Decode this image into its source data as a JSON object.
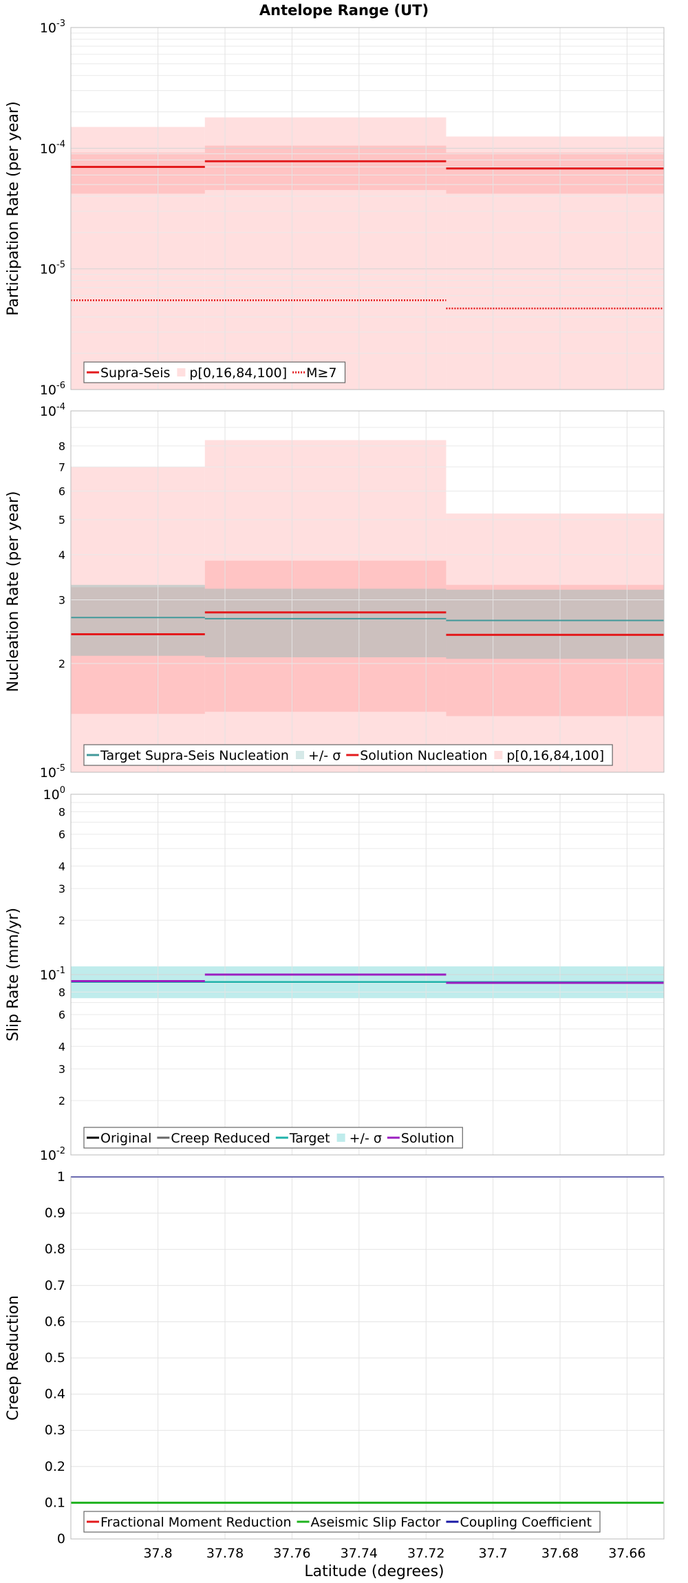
{
  "figure": {
    "title": "Antelope Range (UT)",
    "xlabel": "Latitude (degrees)"
  },
  "chart_data": [
    {
      "type": "line",
      "ylabel": "Participation Rate (per year)",
      "yscale": "log",
      "ylim": [
        1e-06,
        0.001
      ],
      "xlim": [
        37.826,
        37.649
      ],
      "x_reversed": true,
      "grid": true,
      "legend_position": "bottom-left",
      "y_ticks": [
        {
          "v": 1e-06,
          "base": "10",
          "exp": "-6"
        },
        {
          "v": 1e-05,
          "base": "10",
          "exp": "-5"
        },
        {
          "v": 0.0001,
          "base": "10",
          "exp": "-4"
        },
        {
          "v": 0.001,
          "base": "10",
          "exp": "-3"
        }
      ],
      "bands": [
        {
          "name": "p[0,16,84,100]",
          "color": "#ffdfdf",
          "segments": [
            {
              "x0": 37.826,
              "x1": 37.786,
              "low": 1e-06,
              "high": 0.00015
            },
            {
              "x0": 37.786,
              "x1": 37.714,
              "low": 1e-06,
              "high": 0.00018
            },
            {
              "x0": 37.714,
              "x1": 37.649,
              "low": 1e-06,
              "high": 0.000125
            }
          ]
        },
        {
          "name": "p16-84",
          "color": "#ffc4c4",
          "segments": [
            {
              "x0": 37.826,
              "x1": 37.786,
              "low": 4.2e-05,
              "high": 9.2e-05
            },
            {
              "x0": 37.786,
              "x1": 37.714,
              "low": 4.5e-05,
              "high": 0.000105
            },
            {
              "x0": 37.714,
              "x1": 37.649,
              "low": 4.2e-05,
              "high": 9.2e-05
            }
          ]
        }
      ],
      "series": [
        {
          "name": "Supra-Seis",
          "color": "#e31a1c",
          "style": "solid",
          "width": 3,
          "segments": [
            {
              "x0": 37.826,
              "x1": 37.786,
              "y": 7e-05
            },
            {
              "x0": 37.786,
              "x1": 37.714,
              "y": 7.8e-05
            },
            {
              "x0": 37.714,
              "x1": 37.649,
              "y": 6.8e-05
            }
          ]
        },
        {
          "name": "M≥7",
          "color": "#e31a1c",
          "style": "dotted",
          "width": 2.5,
          "segments": [
            {
              "x0": 37.826,
              "x1": 37.714,
              "y": 5.5e-06
            },
            {
              "x0": 37.714,
              "x1": 37.649,
              "y": 4.7e-06
            }
          ]
        }
      ],
      "legend": [
        {
          "label": "Supra-Seis",
          "kind": "line",
          "color": "#e31a1c",
          "style": "solid"
        },
        {
          "label": "p[0,16,84,100]",
          "kind": "box",
          "color": "#ffdfdf"
        },
        {
          "label": "M≥7",
          "kind": "line",
          "color": "#e31a1c",
          "style": "dotted"
        }
      ]
    },
    {
      "type": "line",
      "ylabel": "Nucleation Rate (per year)",
      "yscale": "log",
      "ylim": [
        1e-05,
        0.0001
      ],
      "xlim": [
        37.826,
        37.649
      ],
      "x_reversed": true,
      "grid": true,
      "legend_position": "bottom-left",
      "y_ticks": [
        {
          "v": 1e-05,
          "base": "10",
          "exp": "-5"
        },
        {
          "v": 2e-05,
          "text": "2"
        },
        {
          "v": 3e-05,
          "text": "3"
        },
        {
          "v": 4e-05,
          "text": "4"
        },
        {
          "v": 5e-05,
          "text": "5"
        },
        {
          "v": 6e-05,
          "text": "6"
        },
        {
          "v": 7e-05,
          "text": "7"
        },
        {
          "v": 8e-05,
          "text": "8"
        },
        {
          "v": 0.0001,
          "base": "10",
          "exp": "-4"
        }
      ],
      "bands": [
        {
          "name": "p[0,16,84,100]",
          "color": "#ffdfdf",
          "segments": [
            {
              "x0": 37.826,
              "x1": 37.786,
              "low": 1e-05,
              "high": 7e-05
            },
            {
              "x0": 37.786,
              "x1": 37.714,
              "low": 1e-05,
              "high": 8.3e-05
            },
            {
              "x0": 37.714,
              "x1": 37.649,
              "low": 1e-05,
              "high": 5.2e-05
            }
          ]
        },
        {
          "name": "p16-84",
          "color": "#ffc4c4",
          "segments": [
            {
              "x0": 37.826,
              "x1": 37.786,
              "low": 1.45e-05,
              "high": 3.25e-05
            },
            {
              "x0": 37.786,
              "x1": 37.714,
              "low": 1.47e-05,
              "high": 3.85e-05
            },
            {
              "x0": 37.714,
              "x1": 37.649,
              "low": 1.43e-05,
              "high": 3.3e-05
            }
          ]
        },
        {
          "name": "+/- σ",
          "color": "#8fbdb9",
          "opacity": 0.45,
          "segments": [
            {
              "x0": 37.826,
              "x1": 37.786,
              "low": 2.1e-05,
              "high": 3.3e-05
            },
            {
              "x0": 37.786,
              "x1": 37.714,
              "low": 2.08e-05,
              "high": 3.22e-05
            },
            {
              "x0": 37.714,
              "x1": 37.649,
              "low": 2.06e-05,
              "high": 3.2e-05
            }
          ]
        }
      ],
      "series": [
        {
          "name": "Target Supra-Seis Nucleation",
          "color": "#41999a",
          "style": "solid",
          "width": 2,
          "segments": [
            {
              "x0": 37.826,
              "x1": 37.786,
              "y": 2.68e-05
            },
            {
              "x0": 37.786,
              "x1": 37.714,
              "y": 2.66e-05
            },
            {
              "x0": 37.714,
              "x1": 37.649,
              "y": 2.63e-05
            }
          ]
        },
        {
          "name": "Solution Nucleation",
          "color": "#e31a1c",
          "style": "solid",
          "width": 3,
          "segments": [
            {
              "x0": 37.826,
              "x1": 37.786,
              "y": 2.41e-05
            },
            {
              "x0": 37.786,
              "x1": 37.714,
              "y": 2.77e-05
            },
            {
              "x0": 37.714,
              "x1": 37.649,
              "y": 2.4e-05
            }
          ]
        }
      ],
      "legend": [
        {
          "label": "Target Supra-Seis Nucleation",
          "kind": "line",
          "color": "#41999a",
          "style": "solid"
        },
        {
          "label": "+/- σ",
          "kind": "box",
          "color": "#d6e9e8"
        },
        {
          "label": "Solution Nucleation",
          "kind": "line",
          "color": "#e31a1c",
          "style": "solid"
        },
        {
          "label": "p[0,16,84,100]",
          "kind": "box",
          "color": "#ffdfdf"
        }
      ]
    },
    {
      "type": "line",
      "ylabel": "Slip Rate (mm/yr)",
      "yscale": "log",
      "ylim": [
        0.01,
        1
      ],
      "xlim": [
        37.826,
        37.649
      ],
      "x_reversed": true,
      "grid": true,
      "legend_position": "bottom-left",
      "y_ticks": [
        {
          "v": 0.01,
          "base": "10",
          "exp": "-2"
        },
        {
          "v": 0.02,
          "text": "2"
        },
        {
          "v": 0.03,
          "text": "3"
        },
        {
          "v": 0.04,
          "text": "4"
        },
        {
          "v": 0.06,
          "text": "6"
        },
        {
          "v": 0.08,
          "text": "8"
        },
        {
          "v": 0.1,
          "base": "10",
          "exp": "-1"
        },
        {
          "v": 0.2,
          "text": "2"
        },
        {
          "v": 0.3,
          "text": "3"
        },
        {
          "v": 0.4,
          "text": "4"
        },
        {
          "v": 0.6,
          "text": "6"
        },
        {
          "v": 0.8,
          "text": "8"
        },
        {
          "v": 1,
          "base": "10",
          "exp": "0"
        }
      ],
      "bands": [
        {
          "name": "+/- σ",
          "color": "#bfecec",
          "segments": [
            {
              "x0": 37.826,
              "x1": 37.649,
              "low": 0.074,
              "high": 0.111
            }
          ]
        }
      ],
      "series": [
        {
          "name": "Target",
          "color": "#1fb2aa",
          "style": "solid",
          "width": 2.5,
          "segments": [
            {
              "x0": 37.826,
              "x1": 37.649,
              "y": 0.091
            }
          ]
        },
        {
          "name": "Solution",
          "color": "#9b1fc0",
          "style": "solid",
          "width": 3,
          "segments": [
            {
              "x0": 37.826,
              "x1": 37.786,
              "y": 0.092
            },
            {
              "x0": 37.786,
              "x1": 37.714,
              "y": 0.1
            },
            {
              "x0": 37.714,
              "x1": 37.649,
              "y": 0.09
            }
          ]
        }
      ],
      "legend": [
        {
          "label": "Original",
          "kind": "line",
          "color": "#000000",
          "style": "solid"
        },
        {
          "label": "Creep Reduced",
          "kind": "line",
          "color": "#666666",
          "style": "solid"
        },
        {
          "label": "Target",
          "kind": "line",
          "color": "#1fb2aa",
          "style": "solid"
        },
        {
          "label": "+/- σ",
          "kind": "box",
          "color": "#bfecec"
        },
        {
          "label": "Solution",
          "kind": "line",
          "color": "#9b1fc0",
          "style": "solid"
        }
      ]
    },
    {
      "type": "line",
      "ylabel": "Creep Reduction",
      "yscale": "linear",
      "ylim": [
        0,
        1
      ],
      "xlim": [
        37.826,
        37.649
      ],
      "x_reversed": true,
      "grid": true,
      "legend_position": "bottom-left",
      "y_ticks": [
        {
          "v": 0,
          "text": "0"
        },
        {
          "v": 0.1,
          "text": "0.1"
        },
        {
          "v": 0.2,
          "text": "0.2"
        },
        {
          "v": 0.3,
          "text": "0.3"
        },
        {
          "v": 0.4,
          "text": "0.4"
        },
        {
          "v": 0.5,
          "text": "0.5"
        },
        {
          "v": 0.6,
          "text": "0.6"
        },
        {
          "v": 0.7,
          "text": "0.7"
        },
        {
          "v": 0.8,
          "text": "0.8"
        },
        {
          "v": 0.9,
          "text": "0.9"
        },
        {
          "v": 1,
          "text": "1"
        }
      ],
      "x_ticks": [
        {
          "v": 37.8,
          "text": "37.8"
        },
        {
          "v": 37.78,
          "text": "37.78"
        },
        {
          "v": 37.76,
          "text": "37.76"
        },
        {
          "v": 37.74,
          "text": "37.74"
        },
        {
          "v": 37.72,
          "text": "37.72"
        },
        {
          "v": 37.7,
          "text": "37.7"
        },
        {
          "v": 37.68,
          "text": "37.68"
        },
        {
          "v": 37.66,
          "text": "37.66"
        }
      ],
      "bands": [],
      "series": [
        {
          "name": "Aseismic Slip Factor",
          "color": "#1fb21f",
          "style": "solid",
          "width": 3,
          "segments": [
            {
              "x0": 37.826,
              "x1": 37.649,
              "y": 0.1
            }
          ]
        },
        {
          "name": "Coupling Coefficient",
          "color": "#1a1aa6",
          "style": "solid",
          "width": 2,
          "segments": [
            {
              "x0": 37.826,
              "x1": 37.649,
              "y": 1.0
            }
          ]
        }
      ],
      "legend": [
        {
          "label": "Fractional Moment Reduction",
          "kind": "line",
          "color": "#e31a1c",
          "style": "solid"
        },
        {
          "label": "Aseismic Slip Factor",
          "kind": "line",
          "color": "#1fb21f",
          "style": "solid"
        },
        {
          "label": "Coupling Coefficient",
          "kind": "line",
          "color": "#1a1aa6",
          "style": "solid"
        }
      ]
    }
  ]
}
